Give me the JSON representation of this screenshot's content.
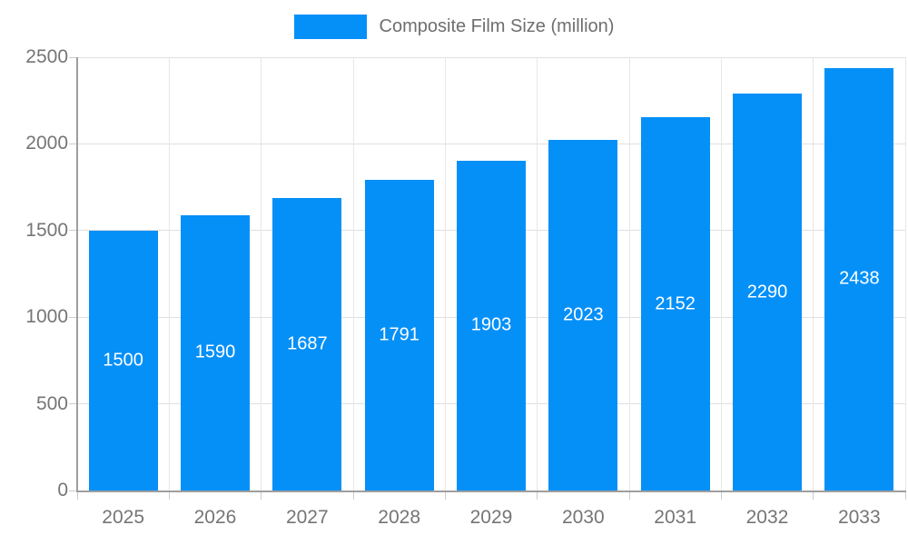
{
  "chart_data": {
    "type": "bar",
    "title": "Composite Film Size (million)",
    "categories": [
      "2025",
      "2026",
      "2027",
      "2028",
      "2029",
      "2030",
      "2031",
      "2032",
      "2033"
    ],
    "values": [
      1500,
      1590,
      1687,
      1791,
      1903,
      2023,
      2152,
      2290,
      2438
    ],
    "xlabel": "",
    "ylabel": "",
    "ylim": [
      0,
      2500
    ],
    "yticks": [
      0,
      500,
      1000,
      1500,
      2000,
      2500
    ],
    "grid": true,
    "legend_position": "top-center",
    "bar_labels_inside": true
  },
  "colors": {
    "bar": "#0590f8",
    "bar_value_text": "#ffffff",
    "axis_text": "#757575",
    "legend_text": "#6e6e6e",
    "grid_h": "#e0e0e0",
    "grid_v": "#e7e7e7",
    "tick": "#cccccc",
    "axis_line": "#9e9e9e",
    "background": "#ffffff"
  }
}
